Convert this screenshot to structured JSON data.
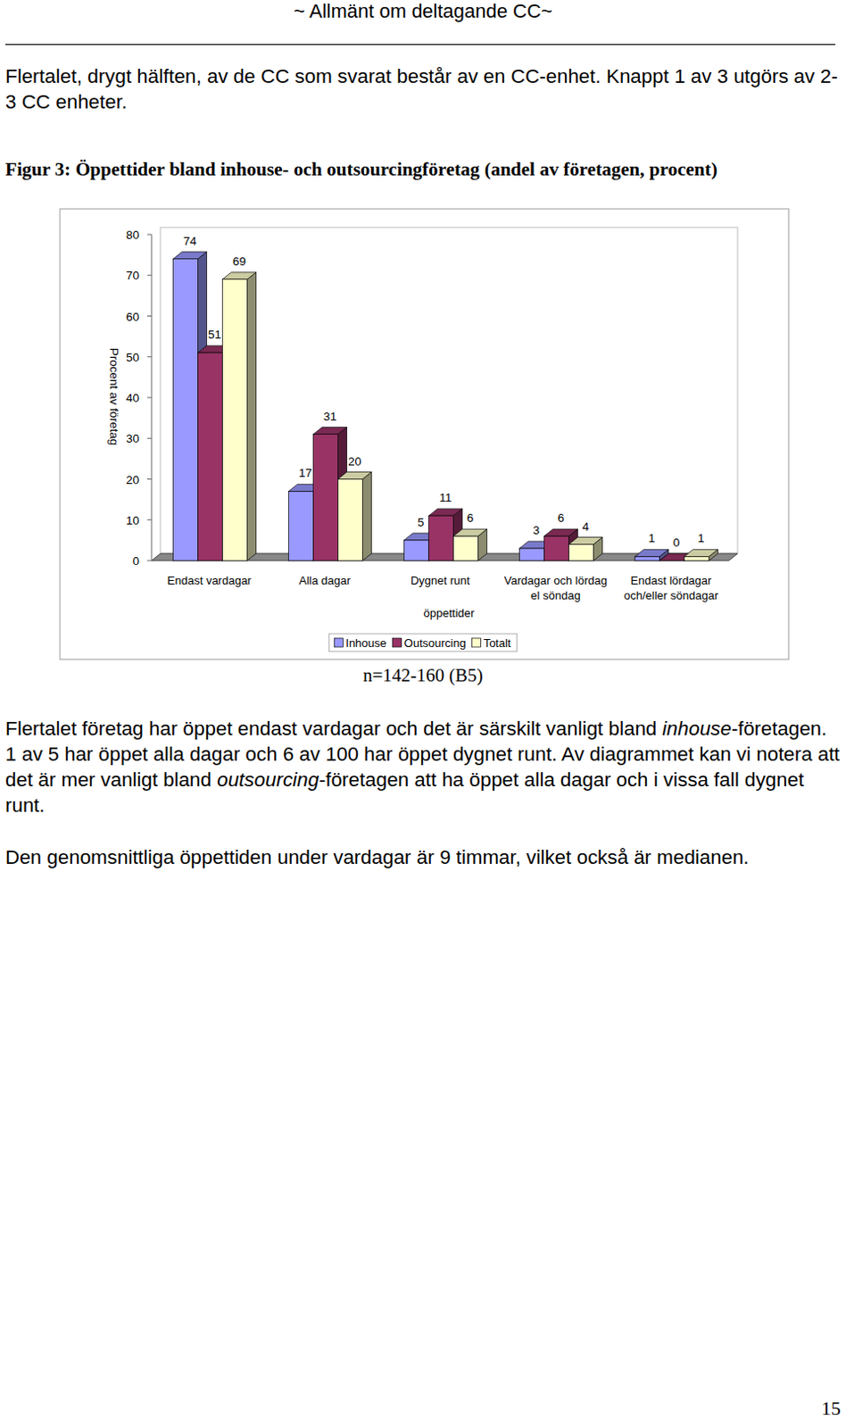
{
  "header": "~ Allmänt om deltagande CC~",
  "intro": "Flertalet, drygt hälften, av de CC som svarat består av en CC-enhet. Knappt 1 av 3 utgörs av 2-3 CC enheter.",
  "chart_data": {
    "type": "bar",
    "title": "Figur 3: Öppettider bland inhouse- och outsourcingföretag (andel av företagen, procent)",
    "y_label": "Procent av företag",
    "x_label": "öppettider",
    "categories": [
      "Endast vardagar",
      "Alla dagar",
      "Dygnet runt",
      "Vardagar och lördag el söndag",
      "Endast lördagar och/eller söndagar"
    ],
    "series": [
      {
        "name": "Inhouse",
        "color": "#9999ff",
        "values": [
          74,
          17,
          5,
          3,
          1
        ]
      },
      {
        "name": "Outsourcing",
        "color": "#993366",
        "values": [
          51,
          31,
          11,
          6,
          0
        ]
      },
      {
        "name": "Totalt",
        "color": "#ffffcc",
        "values": [
          69,
          20,
          6,
          4,
          1
        ]
      }
    ],
    "ylim": [
      0,
      80
    ],
    "yticks": [
      0,
      10,
      20,
      30,
      40,
      50,
      60,
      70,
      80
    ],
    "grid": false,
    "data_labels": true,
    "legend": "bottom"
  },
  "note": "n=142-160 (B5)",
  "paragraphs": [
    {
      "runs": [
        {
          "text": "Flertalet företag har öppet endast vardagar och det är särskilt vanligt bland "
        },
        {
          "text": "inhouse",
          "emphasis": true
        },
        {
          "text": "-företagen. 1 av 5 har öppet alla dagar och 6 av 100 har öppet dygnet runt. Av diagrammet kan vi notera att det är mer vanligt bland "
        },
        {
          "text": "outsourcing",
          "emphasis": true
        },
        {
          "text": "-företagen att ha öppet alla dagar och i vissa fall dygnet runt."
        }
      ]
    },
    {
      "runs": [
        {
          "text": "Den genomsnittliga öppettiden under vardagar är 9 timmar, vilket också är medianen."
        }
      ]
    }
  ],
  "page_number": "15"
}
